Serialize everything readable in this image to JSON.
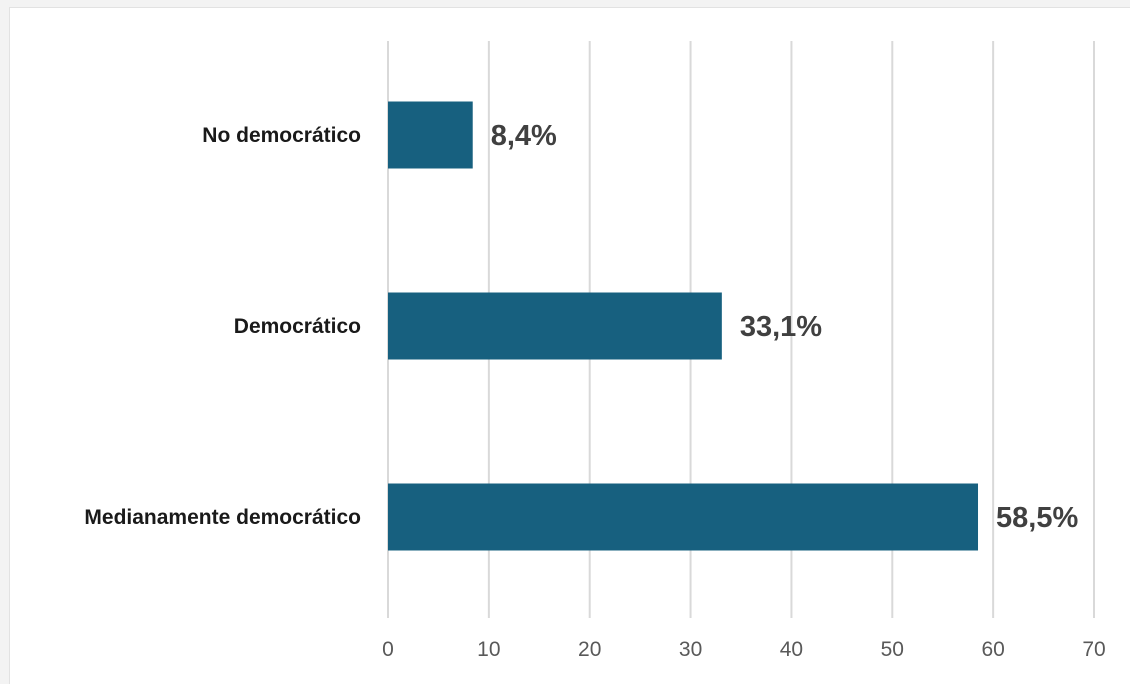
{
  "chart_data": {
    "type": "bar",
    "orientation": "horizontal",
    "categories": [
      "No democrático",
      "Democrático",
      "Medianamente democrático"
    ],
    "values": [
      8.4,
      33.1,
      58.5
    ],
    "value_labels": [
      "8,4%",
      "33,1%",
      "58,5%"
    ],
    "xlim": [
      0,
      70
    ],
    "x_ticks": [
      0,
      10,
      20,
      30,
      40,
      50,
      60,
      70
    ],
    "x_tick_labels": [
      "0",
      "10",
      "20",
      "30",
      "40",
      "50",
      "60",
      "70"
    ],
    "grid": "vertical",
    "legend": "none",
    "bar_color": "#17607f",
    "grid_color": "#d9d9d9",
    "title": "",
    "xlabel": "",
    "ylabel": ""
  }
}
